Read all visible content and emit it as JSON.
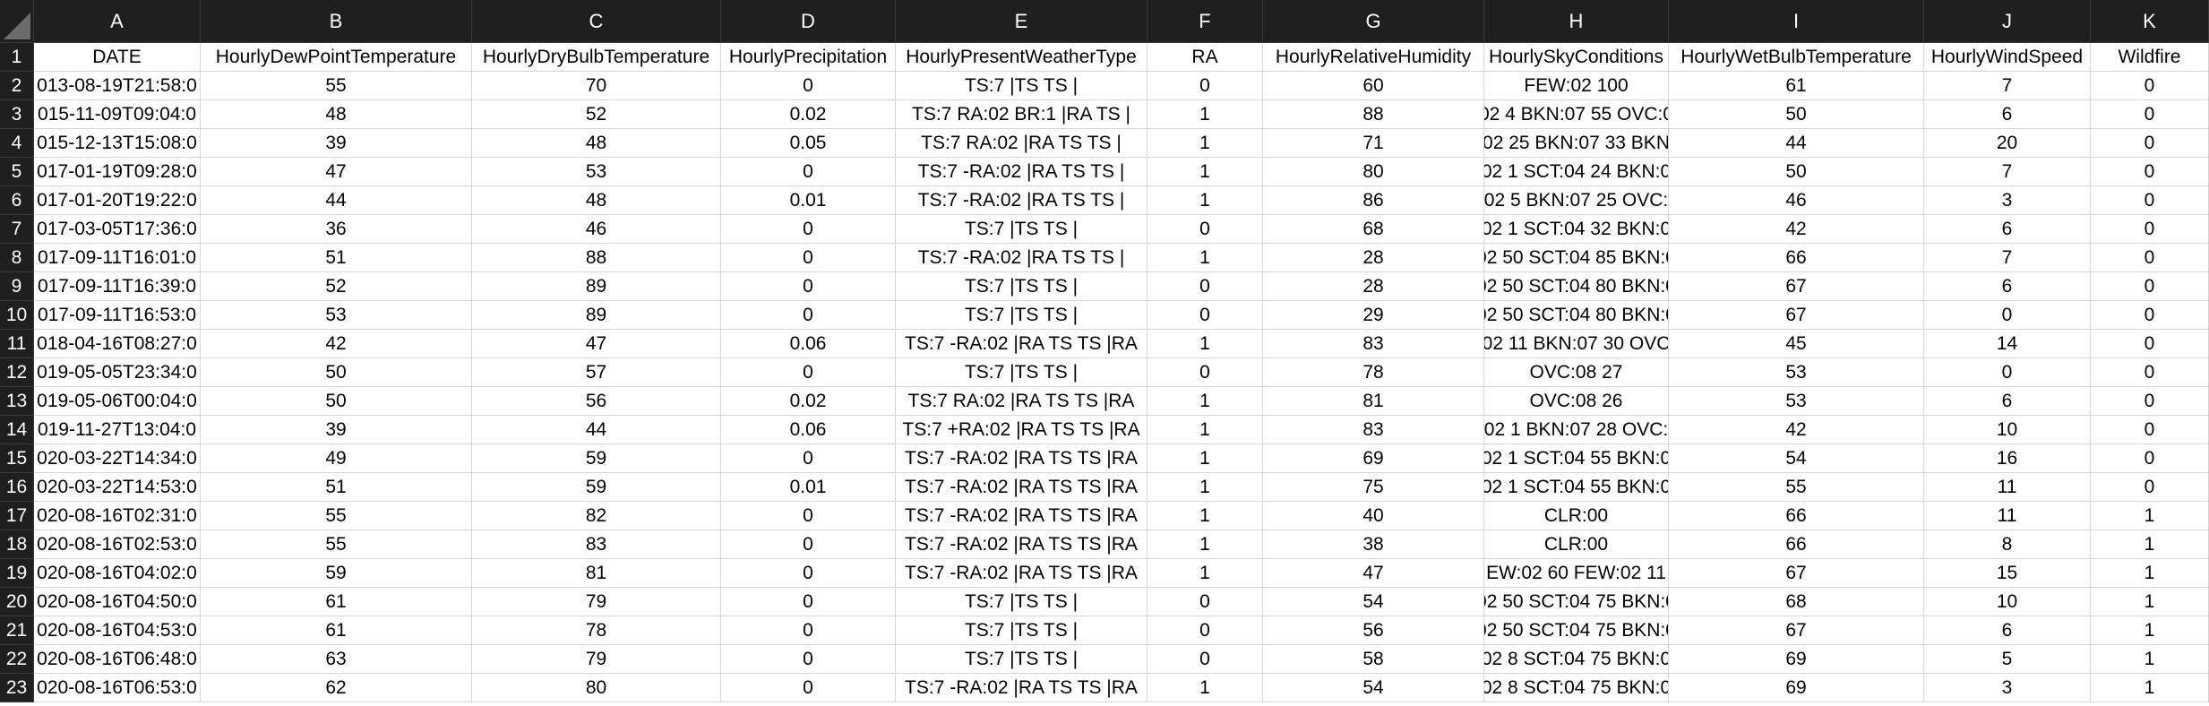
{
  "sheet": {
    "column_letters": [
      "A",
      "B",
      "C",
      "D",
      "E",
      "F",
      "G",
      "H",
      "I",
      "J",
      "K"
    ],
    "header_row": [
      "DATE",
      "HourlyDewPointTemperature",
      "HourlyDryBulbTemperature",
      "HourlyPrecipitation",
      "HourlyPresentWeatherType",
      "RA",
      "HourlyRelativeHumidity",
      "HourlySkyConditions",
      "HourlyWetBulbTemperature",
      "HourlyWindSpeed",
      "Wildfire"
    ],
    "row_numbers": [
      "1",
      "2",
      "3",
      "4",
      "5",
      "6",
      "7",
      "8",
      "9",
      "10",
      "11",
      "12",
      "13",
      "14",
      "15",
      "16",
      "17",
      "18",
      "19",
      "20",
      "21",
      "22",
      "23"
    ],
    "rows": [
      [
        "013-08-19T21:58:0",
        "55",
        "70",
        "0",
        "TS:7 |TS TS |",
        "0",
        "60",
        "FEW:02 100",
        "61",
        "7",
        "0"
      ],
      [
        "015-11-09T09:04:0",
        "48",
        "52",
        "0.02",
        "TS:7 RA:02 BR:1 |RA TS |",
        "1",
        "88",
        "02 4 BKN:07 55 OVC:0",
        "50",
        "6",
        "0"
      ],
      [
        "015-12-13T15:08:0",
        "39",
        "48",
        "0.05",
        "TS:7 RA:02 |RA TS TS |",
        "1",
        "71",
        "02 25 BKN:07 33 BKN",
        "44",
        "20",
        "0"
      ],
      [
        "017-01-19T09:28:0",
        "47",
        "53",
        "0",
        "TS:7 -RA:02 |RA TS TS |",
        "1",
        "80",
        "02 1 SCT:04 24 BKN:0",
        "50",
        "7",
        "0"
      ],
      [
        "017-01-20T19:22:0",
        "44",
        "48",
        "0.01",
        "TS:7 -RA:02 |RA TS TS |",
        "1",
        "86",
        "02 5 BKN:07 25 OVC:",
        "46",
        "3",
        "0"
      ],
      [
        "017-03-05T17:36:0",
        "36",
        "46",
        "0",
        "TS:7 |TS TS |",
        "0",
        "68",
        "02 1 SCT:04 32 BKN:0",
        "42",
        "6",
        "0"
      ],
      [
        "017-09-11T16:01:0",
        "51",
        "88",
        "0",
        "TS:7 -RA:02 |RA TS TS |",
        "1",
        "28",
        "02 50 SCT:04 85 BKN:0",
        "66",
        "7",
        "0"
      ],
      [
        "017-09-11T16:39:0",
        "52",
        "89",
        "0",
        "TS:7 |TS TS |",
        "0",
        "28",
        "02 50 SCT:04 80 BKN:0",
        "67",
        "6",
        "0"
      ],
      [
        "017-09-11T16:53:0",
        "53",
        "89",
        "0",
        "TS:7 |TS TS |",
        "0",
        "29",
        "02 50 SCT:04 80 BKN:0",
        "67",
        "0",
        "0"
      ],
      [
        "018-04-16T08:27:0",
        "42",
        "47",
        "0.06",
        "TS:7 -RA:02 |RA TS TS |RA",
        "1",
        "83",
        "02 11 BKN:07 30 OVC",
        "45",
        "14",
        "0"
      ],
      [
        "019-05-05T23:34:0",
        "50",
        "57",
        "0",
        "TS:7 |TS TS |",
        "0",
        "78",
        "OVC:08 27",
        "53",
        "0",
        "0"
      ],
      [
        "019-05-06T00:04:0",
        "50",
        "56",
        "0.02",
        "TS:7 RA:02 |RA TS TS |RA",
        "1",
        "81",
        "OVC:08 26",
        "53",
        "6",
        "0"
      ],
      [
        "019-11-27T13:04:0",
        "39",
        "44",
        "0.06",
        "TS:7 +RA:02 |RA TS TS |RA",
        "1",
        "83",
        "02 1 BKN:07 28 OVC:",
        "42",
        "10",
        "0"
      ],
      [
        "020-03-22T14:34:0",
        "49",
        "59",
        "0",
        "TS:7 -RA:02 |RA TS TS |RA",
        "1",
        "69",
        "02 1 SCT:04 55 BKN:0",
        "54",
        "16",
        "0"
      ],
      [
        "020-03-22T14:53:0",
        "51",
        "59",
        "0.01",
        "TS:7 -RA:02 |RA TS TS |RA",
        "1",
        "75",
        "02 1 SCT:04 55 BKN:0",
        "55",
        "11",
        "0"
      ],
      [
        "020-08-16T02:31:0",
        "55",
        "82",
        "0",
        "TS:7 -RA:02 |RA TS TS |RA",
        "1",
        "40",
        "CLR:00",
        "66",
        "11",
        "1"
      ],
      [
        "020-08-16T02:53:0",
        "55",
        "83",
        "0",
        "TS:7 -RA:02 |RA TS TS |RA",
        "1",
        "38",
        "CLR:00",
        "66",
        "8",
        "1"
      ],
      [
        "020-08-16T04:02:0",
        "59",
        "81",
        "0",
        "TS:7 -RA:02 |RA TS TS |RA",
        "1",
        "47",
        "EW:02 60 FEW:02 11",
        "67",
        "15",
        "1"
      ],
      [
        "020-08-16T04:50:0",
        "61",
        "79",
        "0",
        "TS:7 |TS TS |",
        "0",
        "54",
        "02 50 SCT:04 75 BKN:0",
        "68",
        "10",
        "1"
      ],
      [
        "020-08-16T04:53:0",
        "61",
        "78",
        "0",
        "TS:7 |TS TS |",
        "0",
        "56",
        "02 50 SCT:04 75 BKN:0",
        "67",
        "6",
        "1"
      ],
      [
        "020-08-16T06:48:0",
        "63",
        "79",
        "0",
        "TS:7 |TS TS |",
        "0",
        "58",
        "02 8 SCT:04 75 BKN:0",
        "69",
        "5",
        "1"
      ],
      [
        "020-08-16T06:53:0",
        "62",
        "80",
        "0",
        "TS:7 -RA:02 |RA TS TS |RA",
        "1",
        "54",
        "02 8 SCT:04 75 BKN:0",
        "69",
        "3",
        "1"
      ]
    ]
  },
  "colors": {
    "header_bg": "#1f1f1f",
    "header_text": "#ffffff",
    "grid_line": "#d4d4d4",
    "cell_text": "#000000"
  }
}
